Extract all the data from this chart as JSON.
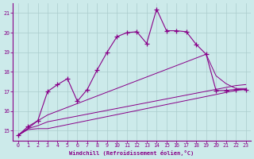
{
  "xlabel": "Windchill (Refroidissement éolien,°C)",
  "background_color": "#cceaea",
  "line_color": "#880088",
  "grid_color": "#aacccc",
  "xlim": [
    -0.5,
    23.5
  ],
  "ylim": [
    14.5,
    21.5
  ],
  "yticks": [
    15,
    16,
    17,
    18,
    19,
    20,
    21
  ],
  "xticks": [
    0,
    1,
    2,
    3,
    4,
    5,
    6,
    7,
    8,
    9,
    10,
    11,
    12,
    13,
    14,
    15,
    16,
    17,
    18,
    19,
    20,
    21,
    22,
    23
  ],
  "series1_x": [
    0,
    1,
    2,
    3,
    4,
    5,
    6,
    7,
    8,
    9,
    10,
    11,
    12,
    13,
    14,
    15,
    16,
    17,
    18,
    19,
    20,
    21,
    22,
    23
  ],
  "series1_y": [
    14.75,
    15.2,
    15.5,
    17.0,
    17.35,
    17.65,
    16.5,
    17.1,
    18.1,
    19.0,
    19.8,
    20.0,
    20.05,
    19.45,
    21.2,
    20.1,
    20.1,
    20.05,
    19.4,
    18.9,
    17.05,
    17.05,
    17.1,
    17.1
  ],
  "series2_x": [
    0,
    1,
    2,
    3,
    22,
    23
  ],
  "series2_y": [
    14.75,
    15.05,
    15.1,
    15.1,
    17.05,
    17.1
  ],
  "series3_x": [
    0,
    1,
    2,
    3,
    22,
    23
  ],
  "series3_y": [
    14.75,
    15.1,
    15.25,
    15.45,
    17.3,
    17.35
  ],
  "series4_x": [
    0,
    1,
    2,
    3,
    19,
    20,
    21,
    22,
    23
  ],
  "series4_y": [
    14.75,
    15.1,
    15.5,
    15.8,
    18.9,
    17.8,
    17.4,
    17.15,
    17.15
  ]
}
